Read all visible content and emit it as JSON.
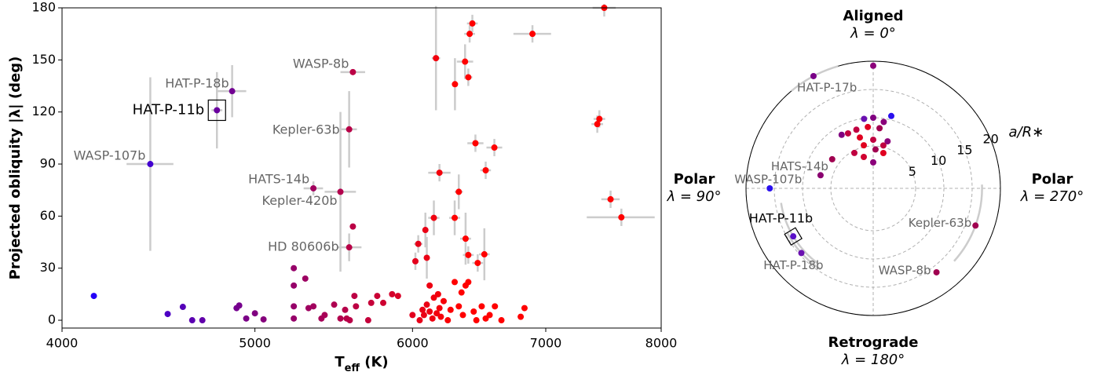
{
  "chart_data": [
    {
      "type": "scatter",
      "xlabel": [
        "T",
        "eff",
        " (K)"
      ],
      "ylabel": "Projected obliquity |λ| (deg)",
      "xscale": "log",
      "xlim": [
        4000,
        8000
      ],
      "ylim": [
        -4.5,
        180
      ],
      "xticks": [
        4000,
        5000,
        6000,
        7000,
        8000
      ],
      "yticks": [
        0,
        30,
        60,
        90,
        120,
        150,
        180
      ],
      "colormap": [
        {
          "value": 4100,
          "color": "#2000ff"
        },
        {
          "value": 5000,
          "color": "#800080"
        },
        {
          "value": 6300,
          "color": "#ff0000"
        }
      ],
      "errorbar_color": "#cccccc",
      "points": [
        {
          "label": "WASP-107b",
          "x": 4430,
          "y": 90,
          "xerr": 120,
          "yerr": 50
        },
        {
          "label": "HAT-P-11b",
          "x": 4785,
          "y": 121,
          "xerr": 30,
          "yerr": 22,
          "highlight": true
        },
        {
          "label": "HAT-P-18b",
          "x": 4870,
          "y": 132,
          "xerr": 80,
          "yerr": 15
        },
        {
          "label": "WASP-8b",
          "x": 5600,
          "y": 143,
          "xerr": 80,
          "yerr": 1.5
        },
        {
          "label": "Kepler-63b",
          "x": 5576,
          "y": 110,
          "xerr": 50,
          "yerr": 22
        },
        {
          "label": "HATS-14b",
          "x": 5350,
          "y": 76,
          "xerr": 60,
          "yerr": 4
        },
        {
          "label": "Kepler-420b",
          "x": 5520,
          "y": 74,
          "xerr": 100,
          "yerr": 46
        },
        {
          "label": "HD 80606b",
          "x": 5576,
          "y": 42,
          "xerr": 80,
          "yerr": 8
        },
        {
          "x": 4150,
          "y": 14
        },
        {
          "x": 4520,
          "y": 3.6
        },
        {
          "x": 4600,
          "y": 7.7
        },
        {
          "x": 4650,
          "y": 0
        },
        {
          "x": 4705,
          "y": 0
        },
        {
          "x": 4895,
          "y": 7
        },
        {
          "x": 4910,
          "y": 8.5
        },
        {
          "x": 4950,
          "y": 1
        },
        {
          "x": 5000,
          "y": 4
        },
        {
          "x": 5050,
          "y": 0.5
        },
        {
          "x": 5230,
          "y": 30
        },
        {
          "x": 5230,
          "y": 20
        },
        {
          "x": 5230,
          "y": 8
        },
        {
          "x": 5230,
          "y": 1
        },
        {
          "x": 5300,
          "y": 24
        },
        {
          "x": 5320,
          "y": 7
        },
        {
          "x": 5350,
          "y": 8
        },
        {
          "x": 5400,
          "y": 1
        },
        {
          "x": 5420,
          "y": 3
        },
        {
          "x": 5480,
          "y": 9
        },
        {
          "x": 5520,
          "y": 1
        },
        {
          "x": 5550,
          "y": 6
        },
        {
          "x": 5560,
          "y": 1
        },
        {
          "x": 5580,
          "y": 0
        },
        {
          "x": 5600,
          "y": 54
        },
        {
          "x": 5610,
          "y": 14
        },
        {
          "x": 5620,
          "y": 8
        },
        {
          "x": 5700,
          "y": 0
        },
        {
          "x": 5720,
          "y": 10
        },
        {
          "x": 5760,
          "y": 14
        },
        {
          "x": 5800,
          "y": 10
        },
        {
          "x": 5860,
          "y": 15
        },
        {
          "x": 5900,
          "y": 14
        },
        {
          "x": 6000,
          "y": 3
        },
        {
          "x": 6020,
          "y": 34,
          "xerr": 20,
          "yerr": 5
        },
        {
          "x": 6040,
          "y": 44,
          "xerr": 30,
          "yerr": 5
        },
        {
          "x": 6090,
          "y": 52,
          "yerr": 10
        },
        {
          "x": 6100,
          "y": 36,
          "xerr": 20,
          "yerr": 12
        },
        {
          "x": 6150,
          "y": 59,
          "xerr": 40,
          "yerr": 10
        },
        {
          "x": 6165,
          "y": 151,
          "xerr": 30,
          "yerr": 30
        },
        {
          "x": 6190,
          "y": 85,
          "xerr": 80,
          "yerr": 5
        },
        {
          "x": 6300,
          "y": 59,
          "xerr": 40,
          "yerr": 10
        },
        {
          "x": 6330,
          "y": 74,
          "xerr": 30,
          "yerr": 10
        },
        {
          "x": 6302,
          "y": 136,
          "xerr": 20,
          "yerr": 15
        },
        {
          "x": 6380,
          "y": 47,
          "xerr": 40,
          "yerr": 15
        },
        {
          "x": 6400,
          "y": 37.6,
          "xerr": 40,
          "yerr": 5
        },
        {
          "x": 6470,
          "y": 33,
          "xerr": 40,
          "yerr": 5
        },
        {
          "x": 6520,
          "y": 38,
          "xerr": 40,
          "yerr": 15
        },
        {
          "x": 6453,
          "y": 102,
          "xerr": 60,
          "yerr": 5
        },
        {
          "x": 6530,
          "y": 86.4,
          "xerr": 40,
          "yerr": 5
        },
        {
          "x": 6596,
          "y": 99.5,
          "xerr": 60,
          "yerr": 5
        },
        {
          "x": 6376,
          "y": 149,
          "xerr": 60,
          "yerr": 10
        },
        {
          "x": 6400,
          "y": 140,
          "xerr": 30,
          "yerr": 5
        },
        {
          "x": 6410,
          "y": 165,
          "xerr": 40,
          "yerr": 5
        },
        {
          "x": 6430,
          "y": 171,
          "xerr": 40,
          "yerr": 5
        },
        {
          "x": 6893,
          "y": 165,
          "xerr": 150,
          "yerr": 5
        },
        {
          "x": 7490,
          "y": 180,
          "xerr": 100,
          "yerr": 5
        },
        {
          "x": 7448,
          "y": 116,
          "xerr": 50,
          "yerr": 5
        },
        {
          "x": 7430,
          "y": 113,
          "xerr": 50,
          "yerr": 5
        },
        {
          "x": 7545,
          "y": 69.7,
          "xerr": 80,
          "yerr": 5
        },
        {
          "x": 7640,
          "y": 59.3,
          "xerr": 300,
          "yerr": 5
        },
        {
          "x": 6050,
          "y": 0
        },
        {
          "x": 6070,
          "y": 6
        },
        {
          "x": 6080,
          "y": 3
        },
        {
          "x": 6100,
          "y": 9
        },
        {
          "x": 6120,
          "y": 5
        },
        {
          "x": 6140,
          "y": 1
        },
        {
          "x": 6150,
          "y": 13
        },
        {
          "x": 6170,
          "y": 4
        },
        {
          "x": 6190,
          "y": 7
        },
        {
          "x": 6200,
          "y": 2
        },
        {
          "x": 6220,
          "y": 11
        },
        {
          "x": 6250,
          "y": 0
        },
        {
          "x": 6270,
          "y": 6
        },
        {
          "x": 6300,
          "y": 22
        },
        {
          "x": 6330,
          "y": 8
        },
        {
          "x": 6350,
          "y": 16
        },
        {
          "x": 6360,
          "y": 3
        },
        {
          "x": 6380,
          "y": 20
        },
        {
          "x": 6400,
          "y": 22
        },
        {
          "x": 6440,
          "y": 5
        },
        {
          "x": 6460,
          "y": 0
        },
        {
          "x": 6500,
          "y": 8
        },
        {
          "x": 6530,
          "y": 1
        },
        {
          "x": 6560,
          "y": 3
        },
        {
          "x": 6600,
          "y": 8
        },
        {
          "x": 6650,
          "y": 0
        },
        {
          "x": 6800,
          "y": 2
        },
        {
          "x": 6830,
          "y": 7
        },
        {
          "x": 6120,
          "y": 20
        },
        {
          "x": 6180,
          "y": 15
        }
      ]
    },
    {
      "type": "polar",
      "rlabel": "a/R∗",
      "rlim": [
        -2.5,
        20
      ],
      "rticks": [
        5,
        10,
        15,
        20
      ],
      "errorbar_color": "#cccccc",
      "directions": [
        {
          "lambda": 0,
          "title": "Aligned",
          "sub": "λ = 0°"
        },
        {
          "lambda": 90,
          "title": "Polar",
          "sub": "λ = 90°"
        },
        {
          "lambda": 180,
          "title": "Retrograde",
          "sub": "λ = 180°"
        },
        {
          "lambda": 270,
          "title": "Polar",
          "sub": "λ = 270°"
        }
      ],
      "points": [
        {
          "label": "HAT-P-17b",
          "lambda": 28,
          "r": 20,
          "lerr": 12,
          "color": "#7a0088"
        },
        {
          "label": "WASP-107b",
          "lambda": 90,
          "r": 15.8,
          "color": "#2a10ee"
        },
        {
          "label": "HATS-14b",
          "lambda": 76,
          "r": 7.1,
          "color": "#8a0070"
        },
        {
          "label": "HAT-P-11b",
          "lambda": 121,
          "r": 14,
          "lerr": 22,
          "color": "#5a10c8",
          "highlight": true
        },
        {
          "label": "HAT-P-18b",
          "lambda": 132,
          "r": 14.6,
          "lerr": 15,
          "color": "#6a10b0"
        },
        {
          "label": "Kepler-63b",
          "lambda": 250,
          "r": 16.75,
          "lerr": 22,
          "color": "#a00050"
        },
        {
          "label": "WASP-8b",
          "lambda": 217,
          "r": 16.1,
          "color": "#a00050"
        },
        {
          "lambda": 0,
          "r": 19.2,
          "color": "#8b007a"
        },
        {
          "lambda": 346,
          "r": 10.7,
          "color": "#2a10ee"
        },
        {
          "lambda": 0,
          "r": 10,
          "color": "#800080"
        },
        {
          "lambda": 7.5,
          "r": 9.9,
          "color": "#6a10b0"
        },
        {
          "lambda": 351,
          "r": 9.4,
          "color": "#8b007a"
        },
        {
          "lambda": 16,
          "r": 8.3,
          "color": "#c00040"
        },
        {
          "lambda": 5,
          "r": 8.4,
          "color": "#e00020"
        },
        {
          "lambda": 354,
          "r": 8.2,
          "color": "#a00050"
        },
        {
          "lambda": 24.6,
          "r": 8.2,
          "color": "#c00040"
        },
        {
          "lambda": 14.7,
          "r": 6.8,
          "color": "#e00020"
        },
        {
          "lambda": 0,
          "r": 6.1,
          "color": "#c00040"
        },
        {
          "lambda": 343,
          "r": 6.2,
          "color": "#8b007a"
        },
        {
          "lambda": 12.3,
          "r": 5.3,
          "color": "#e00020"
        },
        {
          "lambda": 356.6,
          "r": 4.4,
          "color": "#a00050"
        },
        {
          "lambda": 346.7,
          "r": 5.3,
          "color": "#c00040"
        },
        {
          "lambda": 30.5,
          "r": 8.5,
          "color": "#800080"
        },
        {
          "lambda": 54.6,
          "r": 6.4,
          "color": "#a00050"
        },
        {
          "lambda": 28,
          "r": 4.6,
          "color": "#c00040"
        },
        {
          "lambda": 16.7,
          "r": 3.3,
          "color": "#d00030"
        },
        {
          "lambda": 0,
          "r": 2.1,
          "color": "#8b007a"
        },
        {
          "lambda": 344,
          "r": 4,
          "color": "#e00020"
        }
      ]
    }
  ]
}
